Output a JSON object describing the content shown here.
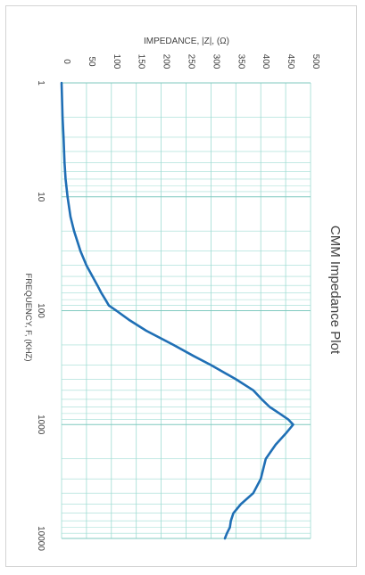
{
  "chart_data": {
    "type": "line",
    "title": "CMM Impedance Plot",
    "xlabel": "FREQUENCY, F, (KHZ)",
    "ylabel": "IMPEDANCE, |Z|, (Ω)",
    "x_scale": "log",
    "xlim": [
      1,
      10000
    ],
    "ylim": [
      0,
      500
    ],
    "x_ticks": [
      "1",
      "10",
      "100",
      "1000",
      "10000"
    ],
    "y_ticks": [
      "0",
      "50",
      "100",
      "150",
      "200",
      "250",
      "300",
      "350",
      "400",
      "450",
      "500"
    ],
    "orientation": "rotated 90° clockwise (frequency runs top-to-bottom, impedance left-to-right)",
    "grid": true,
    "series": [
      {
        "color": "#1f6fb5",
        "x": [
          1,
          2,
          3,
          5,
          7,
          10,
          15,
          20,
          30,
          40,
          50,
          60,
          70,
          80,
          90,
          100,
          120,
          150,
          200,
          250,
          300,
          400,
          500,
          600,
          700,
          800,
          900,
          1000,
          1200,
          1500,
          2000,
          3000,
          4000,
          5000,
          6000,
          7000,
          8000,
          9000,
          10000
        ],
        "y": [
          0,
          2,
          4,
          6,
          8,
          12,
          18,
          25,
          38,
          50,
          62,
          72,
          80,
          88,
          95,
          110,
          135,
          170,
          225,
          265,
          300,
          350,
          385,
          402,
          418,
          438,
          455,
          465,
          450,
          430,
          410,
          400,
          385,
          360,
          345,
          340,
          338,
          332,
          328
        ]
      }
    ]
  }
}
